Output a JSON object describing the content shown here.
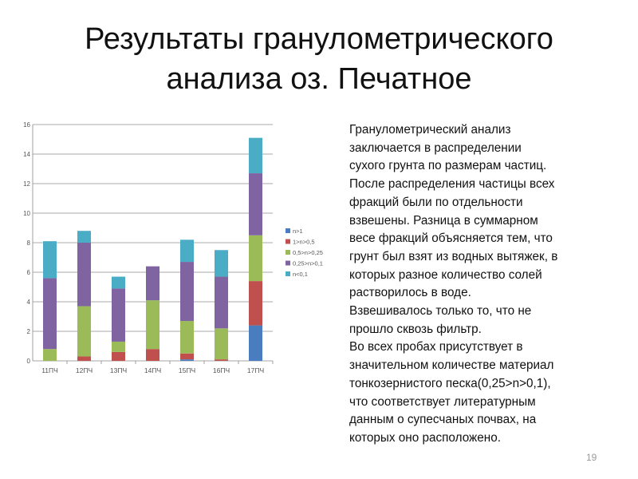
{
  "slide": {
    "title_line1": "Результаты гранулометрического",
    "title_line2": "анализа оз. Печатное",
    "body": "Гранулометрический анализ\nзаключается в распределении\nсухого грунта по размерам частиц.\nПосле распределения частицы всех\nфракций были по отдельности\nвзвешены. Разница в суммарном\nвесе фракций объясняется тем, что\nгрунт был взят из водных вытяжек, в\nкоторых разное количество солей\nрастворилось в воде.\nВзвешивалось только то, что не\nпрошло сквозь фильтр.\nВо всех пробах присутствует в\nзначительном количестве материал\nтонкозернистого песка(0,25>n>0,1),\nчто соответствует литературным\nданным о супесчаных почвах, на\nкоторых оно расположено.",
    "page_number": "19"
  },
  "chart_data": {
    "type": "bar",
    "stacked": true,
    "title": "",
    "xlabel": "",
    "ylabel": "",
    "categories": [
      "11ПЧ",
      "12ПЧ",
      "13ПЧ",
      "14ПЧ",
      "15ПЧ",
      "16ПЧ",
      "17ПЧ"
    ],
    "ylim": [
      0,
      16
    ],
    "yticks": [
      "0",
      "2",
      "4",
      "6",
      "8",
      "10",
      "12",
      "14",
      "16"
    ],
    "grid": true,
    "legend_position": "right",
    "series": [
      {
        "name": "n>1",
        "color": "#4a7dbf",
        "values": [
          0,
          0,
          0,
          0,
          0.1,
          0,
          2.4
        ]
      },
      {
        "name": "1>n>0,5",
        "color": "#c0504d",
        "values": [
          0,
          0.3,
          0.6,
          0.8,
          0.4,
          0.1,
          3.0
        ]
      },
      {
        "name": "0,5>n>0,25",
        "color": "#9bbb59",
        "values": [
          0.8,
          3.4,
          0.7,
          3.3,
          2.2,
          2.1,
          3.1
        ]
      },
      {
        "name": "0,25>n>0,1",
        "color": "#8064a2",
        "values": [
          4.8,
          4.3,
          3.6,
          2.3,
          4.0,
          3.5,
          4.2
        ]
      },
      {
        "name": "n<0,1",
        "color": "#4bacc6",
        "values": [
          2.5,
          0.8,
          0.8,
          0,
          1.5,
          1.8,
          2.4
        ]
      }
    ]
  }
}
